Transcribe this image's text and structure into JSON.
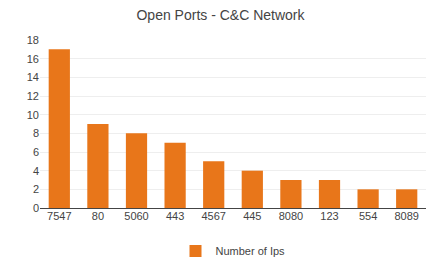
{
  "chart_data": {
    "type": "bar",
    "title": "Open Ports - C&C Network",
    "categories": [
      "7547",
      "80",
      "5060",
      "443",
      "4567",
      "445",
      "8080",
      "123",
      "554",
      "8089"
    ],
    "series": [
      {
        "name": "Number of Ips",
        "color": "#E8761A",
        "values": [
          17,
          9,
          8,
          7,
          5,
          4,
          3,
          3,
          2,
          2
        ]
      }
    ],
    "ylim": [
      0,
      18
    ],
    "yticks": [
      0,
      2,
      4,
      6,
      8,
      10,
      12,
      14,
      16,
      18
    ],
    "grid": true,
    "legend": "bottom"
  }
}
